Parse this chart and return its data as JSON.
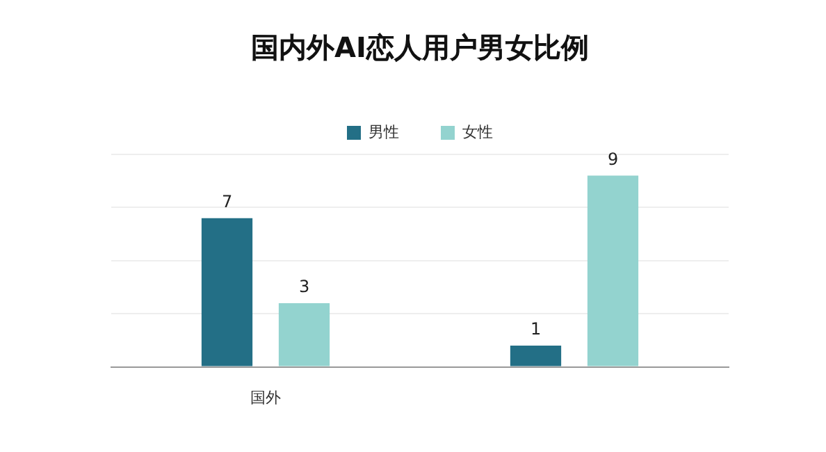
{
  "chart_data": {
    "type": "bar",
    "title": "国内外AI恋人用户男女比例",
    "categories": [
      "国外",
      null
    ],
    "series": [
      {
        "name": "男性",
        "color": "#236f86",
        "values": [
          7,
          1
        ]
      },
      {
        "name": "女性",
        "color": "#93d3cf",
        "values": [
          3,
          9
        ]
      }
    ],
    "ylim": [
      0,
      10
    ],
    "yticks": [
      {
        "value": 0,
        "label": null
      },
      {
        "value": 2.5,
        "label": null
      },
      {
        "value": 5,
        "label": null
      },
      {
        "value": 7.5,
        "label": null
      },
      {
        "value": 10,
        "label": null
      }
    ],
    "grid": "y",
    "legend": "top",
    "data_labels": true,
    "tick_labels": "x"
  }
}
